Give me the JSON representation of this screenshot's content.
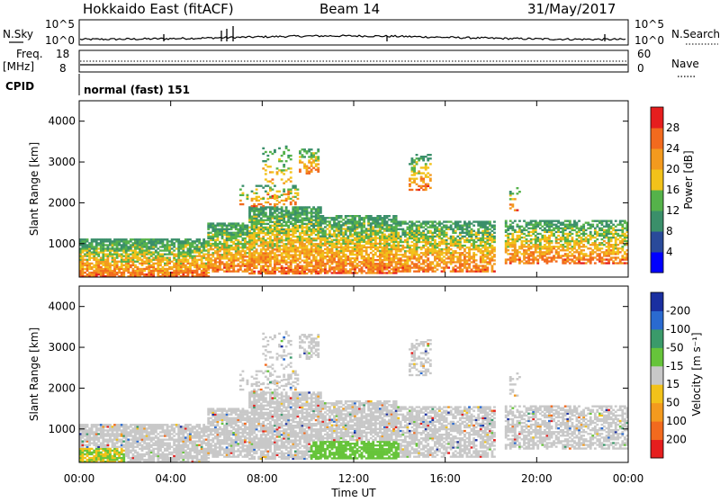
{
  "header": {
    "station": "Hokkaido East (fitACF)",
    "beam": "Beam 14",
    "date": "31/May/2017"
  },
  "top_panels": {
    "nsky": {
      "label": "N.Sky",
      "ticks": [
        "10^5",
        "10^0"
      ]
    },
    "nsearch": {
      "label": "N.Search",
      "ticks": [
        "10^5",
        "10^0"
      ]
    },
    "freq": {
      "label_line1": "Freq.",
      "label_line2": "[MHz]",
      "ticks": [
        "18",
        "8"
      ]
    },
    "nave": {
      "label": "Nave",
      "ticks": [
        "60",
        "0"
      ]
    },
    "cpid": {
      "label": "CPID",
      "mode": "normal (fast) 151"
    }
  },
  "chart_data": [
    {
      "type": "heatmap",
      "name": "power",
      "ylabel": "Slant Range [km]",
      "yticks": [
        1000,
        2000,
        3000,
        4000
      ],
      "ylim": [
        180,
        4500
      ],
      "xlim": [
        0,
        24
      ],
      "colorbar": {
        "label": "Power [dB]",
        "ticks": [
          4,
          8,
          12,
          16,
          20,
          24,
          28
        ],
        "colors": [
          "#0000ff",
          "#2a4a9a",
          "#3a8f6a",
          "#55b24a",
          "#f2c21a",
          "#f39a1e",
          "#f26a1e",
          "#e61e1e"
        ]
      }
    },
    {
      "type": "heatmap",
      "name": "velocity",
      "ylabel": "Slant Range [km]",
      "yticks": [
        1000,
        2000,
        3000,
        4000
      ],
      "ylim": [
        180,
        4500
      ],
      "xlim": [
        0,
        24
      ],
      "colorbar": {
        "label": "Velocity [m s⁻¹]",
        "ticks": [
          200,
          100,
          50,
          15,
          -15,
          -50,
          -100,
          -200
        ],
        "colors": [
          "#1a2fa0",
          "#2a6ad0",
          "#3a9a6a",
          "#66c43a",
          "#c8c8c8",
          "#f2c21a",
          "#f39a1e",
          "#f26a1e",
          "#e61e1e"
        ]
      }
    }
  ],
  "xaxis": {
    "ticks": [
      "00:00",
      "04:00",
      "08:00",
      "12:00",
      "16:00",
      "20:00",
      "00:00"
    ],
    "label": "Time UT"
  }
}
